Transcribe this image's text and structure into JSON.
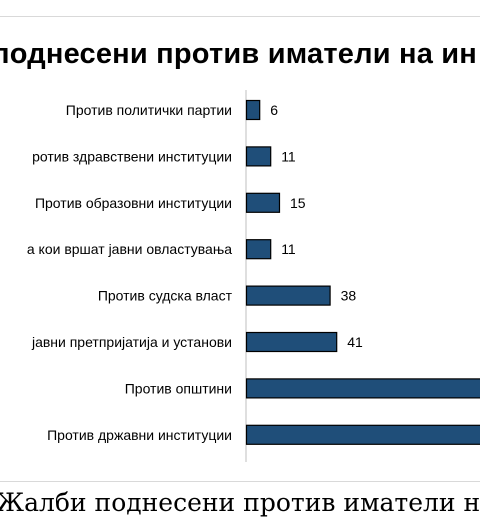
{
  "chart_data": {
    "type": "bar",
    "orientation": "horizontal",
    "title": "Жалби поднесени против иматели на информации",
    "categories": [
      "Против политички партии",
      "Против здравствени институции",
      "Против образовни институции",
      "Против правни лица кои вршат јавни овластувања",
      "Против судска власт",
      "Против јавни претпријатија и установи",
      "Против општини",
      "Против државни институции"
    ],
    "values": [
      6,
      11,
      15,
      11,
      38,
      41,
      null,
      null
    ],
    "value_labels": [
      "6",
      "11",
      "15",
      "11",
      "38",
      "41",
      "",
      ""
    ],
    "xlabel": "",
    "ylabel": "",
    "xlim": [
      0,
      100
    ],
    "grid": false,
    "legend": "none",
    "colors": {
      "bar_fill": "#1f4e79",
      "bar_stroke": "#000000",
      "axis": "#bfbfbf",
      "text": "#000000"
    }
  },
  "visible_text": {
    "title": "поднесени против иматели на ин",
    "category_labels": [
      "Против политички партии",
      "ротив здравствени институции",
      "Против образовни институции",
      "а кои вршат јавни овластувања",
      "Против судска власт",
      "јавни претпријатија и установи",
      "Против општини",
      "Против државни институции"
    ]
  },
  "caption": "Жалби поднесени против иматели на инфо"
}
